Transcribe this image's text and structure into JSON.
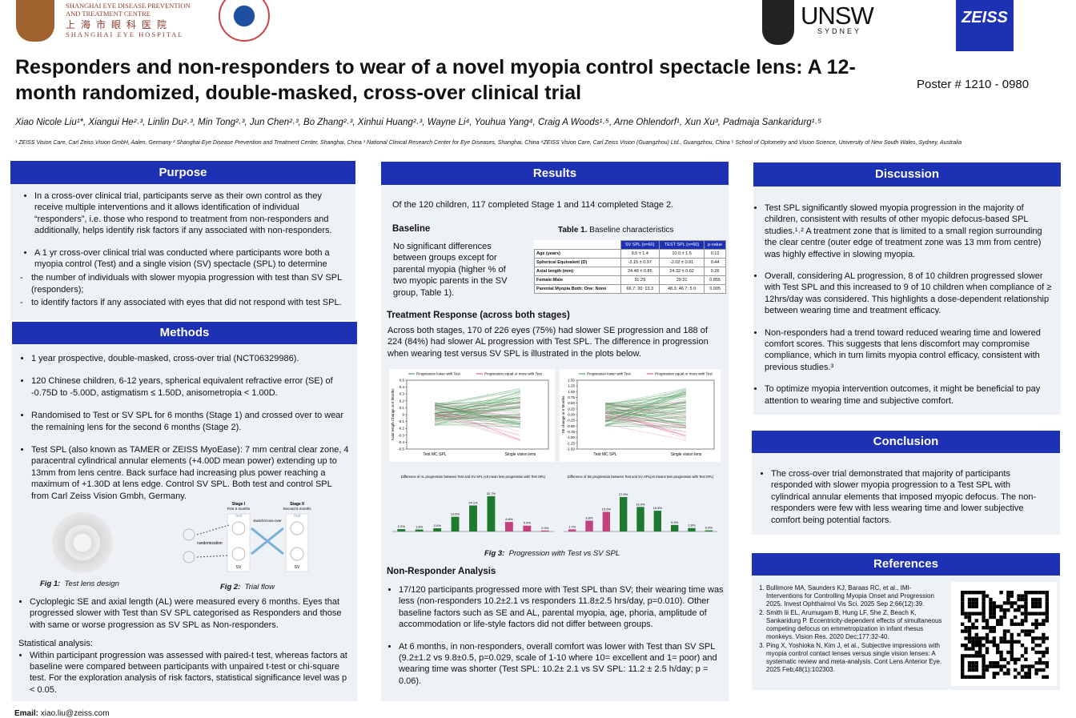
{
  "header": {
    "logo1_lines": [
      "SHANGHAI EYE DISEASE PREVENTION",
      "AND TREATMENT CENTRE"
    ],
    "logo1_cn": "上 海 市 眼 科 医 院",
    "logo1_en": "SHANGHAI EYE HOSPITAL",
    "unsw": "UNSW",
    "sydney": "SYDNEY",
    "zeiss": "ZEISS",
    "title": "Responders and non-responders to wear of a novel myopia control spectacle lens: A 12-month randomized, double-masked, cross-over clinical trial",
    "poster_no": "Poster # 1210 - 0980",
    "authors": "Xiao Nicole Liu¹*, Xiangui He²˒³, Linlin Du²˒³, Min Tong²˒³, Jun Chen²˒³, Bo Zhang²˒³, Xinhui Huang²˒³, Wayne Li⁴, Youhua Yang⁴, Craig A Woods¹˒⁵, Arne Ohlendorf¹, Xun Xu³, Padmaja Sankaridurg¹˒⁵",
    "affiliations": "¹ ZEISS Vision Care, Carl Zeiss Vision GmbH, Aalen, Germany  ² Shanghai Eye Disease Prevention and Treatment Center, Shanghai, China  ³ National Clinical Research Center for Eye Diseases, Shanghai, China  ⁴ZEISS Vision Care, Carl Zeiss Vision (Guangzhou) Ltd., Guangzhou, China  ⁵ School of Optometry and Vision Science, University of New South Wales, Sydney, Australia"
  },
  "purpose": {
    "heading": "Purpose",
    "bullets": [
      "In a cross-over clinical trial, participants serve as their own control as they receive multiple interventions and it allows identification of individual “responders”, i.e. those who respond to treatment from non-responders and additionally, helps identify risk factors if any associated with non-responders.",
      "A 1 yr cross-over clinical trial was conducted where participants wore both a myopia control (Test) and  a single vision (SV) spectacle (SPL) to determine"
    ],
    "sub_bullets": [
      "the number of individuals with slower myopia progression with test than SV SPL (responders);",
      "to identify factors if any associated with eyes that did not respond with test SPL."
    ]
  },
  "methods": {
    "heading": "Methods",
    "bullets": [
      "1 year prospective, double-masked, cross-over trial (NCT06329986).",
      "120 Chinese children, 6-12 years,  spherical equivalent refractive error (SE) of -0.75D to -5.00D, astigmatism ≤ 1.50D, anisometropia < 1.00D.",
      "Randomised to Test or SV SPL for 6 months (Stage 1) and crossed over to wear the remaining lens for the second 6 months (Stage 2).",
      "Test SPL (also known as TAMER or ZEISS MyoEase): 7 mm central clear zone, 4 paracentral cylindrical annular elements (+4.00D mean power) extending up to 13mm from lens centre. Back surface had increasing plus power reaching a maximum of +1.30D at lens edge. Control SV SPL. Both test and control SPL from Carl Zeiss Vision Gmbh, Germany."
    ],
    "fig1_label": "Fig 1:",
    "fig1_caption": "Test lens design",
    "fig2_label": "Fig 2:",
    "fig2_caption": "Trial flow",
    "fig2_texts": {
      "stage1": "Stage I",
      "stage1_sub": "First 6 months",
      "stage2": "Stage II",
      "stage2_sub": "Second 6 months",
      "test": "Test",
      "sv": "SV",
      "switch": "Switch/cross-over",
      "rand": "randomization"
    },
    "bullet_after": "Cycloplegic SE and axial length (AL) were measured every 6 months. Eyes that progressed slower with Test than SV SPL categorised as Responders and those with same or worse progression as SV SPL as Non-responders.",
    "stats_heading": "Statistical  analysis:",
    "stats_bullet": "Within participant progression was assessed with paired-t test, whereas factors at baseline were compared between participants with unpaired t-test or chi-square test. For the exploration analysis of risk factors, statistical significance level was p < 0.05."
  },
  "results": {
    "heading": "Results",
    "intro": "Of the 120 children, 117 completed Stage 1 and 114 completed Stage 2.",
    "baseline_heading": "Baseline",
    "baseline_text": "No significant differences between groups except for parental myopia (higher % of two myopic parents in the SV group, Table 1).",
    "table_label": "Table 1.",
    "table_caption": "Baseline characteristics",
    "table": {
      "header": [
        "SV SPL (n=60)",
        "TEST SPL (n=60)",
        "p-value"
      ],
      "rows": [
        [
          "Age (years)",
          "9.5 ± 1.4",
          "10.0 ± 1.5",
          "0.12"
        ],
        [
          "Spherical Equivalent (D)",
          "-2.15 ± 0.97",
          "-2.02 ± 0.91",
          "0.44"
        ],
        [
          "Axial length (mm)",
          "24.48 ± 0.85",
          "24.32 ± 0.62",
          "0.26"
        ],
        [
          "Female:Male",
          "31:29",
          "29:31",
          "0.855"
        ],
        [
          "Parental Myopia Both: One: None",
          "66.7: 20: 13.3",
          "48.3: 46.7: 5.0",
          "0.005"
        ]
      ]
    },
    "treatment_heading": "Treatment Response (across both stages)",
    "treatment_text": "Across both stages, 170 of 226 eyes (75%) had slower SE progression and 188 of 224 (84%) had slower AL progression with Test SPL. The difference in progression when wearing test versus SV SPL is illustrated in the plots below.",
    "plots": [
      {
        "legend": [
          "Progression lower with Test",
          "Progression equal or more with Test"
        ],
        "ylabel": "Axial length Change at 6 Months",
        "xlabels": [
          "Test MC SPL",
          "Single vision lens"
        ],
        "ylim": [
          -0.5,
          0.5
        ],
        "yticks": [
          {
            "value": 0.5,
            "label": "0.5"
          },
          {
            "value": 0.4,
            "label": "0.4"
          },
          {
            "value": 0.3,
            "label": "0.3"
          },
          {
            "value": 0.2,
            "label": "0.2"
          },
          {
            "value": 0.1,
            "label": "0.1"
          },
          0,
          {
            "value": -0.1,
            "label": "-0.1"
          },
          {
            "value": -0.2,
            "label": "-0.2"
          },
          {
            "value": -0.3,
            "label": "-0.3"
          },
          {
            "value": -0.4,
            "label": "-0.4"
          },
          {
            "value": -0.5,
            "label": "-0.5"
          }
        ]
      },
      {
        "legend": [
          "Progression lower with Test",
          "Progression equal or more with Test"
        ],
        "ylabel": "SE change at 6 Months",
        "xlabels": [
          "Test MC SPL",
          "Single vision lens"
        ],
        "ylim": [
          -1.5,
          1.5
        ],
        "yticks": [
          {
            "value": 1.5,
            "label": "1.50"
          },
          {
            "value": 1.25,
            "label": "1.25"
          },
          {
            "value": 1,
            "label": "1.00"
          },
          {
            "value": 0.75,
            "label": "0.75"
          },
          {
            "value": 0.5,
            "label": "0.50"
          },
          {
            "value": 0.25,
            "label": "0.25"
          },
          {
            "value": 0,
            "label": "0.00"
          },
          {
            "value": -0.25,
            "label": "-0.25"
          },
          {
            "value": -0.5,
            "label": "-0.50"
          },
          {
            "value": -0.75,
            "label": "-0.75"
          },
          {
            "value": -1,
            "label": "-1.00"
          },
          {
            "value": -1.25,
            "label": "-1.25"
          },
          {
            "value": -1.5,
            "label": "-1.50"
          }
        ]
      }
    ],
    "bars": [
      {
        "type": "bar",
        "title": "Difference of AL progression between Test and SV SPL (≤0 mean less progression with Test SPL)",
        "values": [
          2.2,
          1.8,
          3.0,
          13.6,
          24.1,
          32.7,
          8.8,
          5.4,
          0.9
        ],
        "value_labels": [
          "2.2%",
          "1.8%",
          "3.0%",
          "13.6%",
          "24.1%",
          "32.7%",
          "8.8%",
          "5.4%",
          "0.9%"
        ],
        "colors": [
          "#1e7a2e",
          "#1e7a2e",
          "#1e7a2e",
          "#1e7a2e",
          "#1e7a2e",
          "#1e7a2e",
          "#c2417f",
          "#c2417f",
          "#c2417f"
        ],
        "ylim": [
          0,
          40
        ]
      },
      {
        "type": "bar",
        "title": "Difference of SE progression between Test and SV SPL(≥0 means less progression with Test SPL)",
        "values": [
          1.7,
          8.8,
          15.9,
          27.9,
          19.9,
          16.8,
          5.3,
          2.8,
          0.9
        ],
        "value_labels": [
          "1.7%",
          "8.8%",
          "15.9%",
          "27.9%",
          "19.9%",
          "16.8%",
          "5.3%",
          "2.8%",
          "0.9%"
        ],
        "colors": [
          "#c2417f",
          "#c2417f",
          "#c2417f",
          "#1e7a2e",
          "#1e7a2e",
          "#1e7a2e",
          "#1e7a2e",
          "#1e7a2e",
          "#1e7a2e"
        ],
        "ylim": [
          0,
          35
        ]
      }
    ],
    "fig3_label": "Fig 3:",
    "fig3_caption": "Progression with Test vs SV SPL",
    "nonresp_heading": "Non-Responder Analysis",
    "nonresp_bullets": [
      "17/120 participants progressed more with Test SPL than SV; their wearing time was less (non-responders 10.2±2.1 vs  responders 11.8±2.5 hrs/day, p=0.010). Other baseline factors such as SE and AL, parental myopia, age, phoria, amplitude of accommodation or life-style factors did not differ between groups.",
      "At 6 months, in non-responders, overall comfort was lower with Test than SV SPL (9.2±1.2 vs 9.8±0.5, p=0.029, scale of 1-10 where 10= excellent and 1= poor) and wearing time was shorter (Test SPL: 10.2± 2.1 vs SV SPL: 11.2 ± 2.5 h/day; p = 0.06)."
    ]
  },
  "discussion": {
    "heading": "Discussion",
    "bullets": [
      "Test SPL significantly slowed myopia progression in the majority of children, consistent with results of other myopic defocus-based SPL studies.¹˒²  A treatment zone that is limited to a small region surrounding the clear centre (outer edge of treatment zone was 13 mm from centre) was highly effective in slowing myopia.",
      "Overall, considering AL progression,  8 of 10 children progressed slower with Test SPL and this increased to 9 of 10 children when compliance of ≥ 12hrs/day was considered. This highlights a dose-dependent relationship between wearing time and treatment efficacy.",
      "Non-responders had a trend toward reduced wearing time and lowered comfort scores. This suggests that lens discomfort may compromise compliance, which in turn limits myopia control efficacy, consistent with previous studies.³",
      "To optimize myopia intervention outcomes, it might be beneficial to pay attention to wearing time and subjective comfort."
    ]
  },
  "conclusion": {
    "heading": "Conclusion",
    "bullets": [
      "The cross-over trial demonstrated that majority of participants responded with slower myopia progression to a Test SPL with cylindrical annular elements that imposed myopic defocus. The non-responders were few with less wearing time and lower subjective comfort being potential factors."
    ]
  },
  "references": {
    "heading": "References",
    "items": [
      "Bullimore MA, Saunders KJ, Baraas RC, et al.,  IMI-Interventions for Controlling Myopia Onset and Progression 2025. Invest Ophthalmol Vis Sci. 2025 Sep 2;66(12):39.",
      "Smith lii EL, Arumugam B, Hung LF, She Z, Beach K, Sankaridurg P. Eccentricity-dependent effects of simultaneous competing defocus on emmetropization in infant rhesus monkeys. Vision Res. 2020 Dec;177:32-40.",
      "Ping X, Yoshioka N, Kim J, et al., Subjective impressions with myopia control contact lenses versus single vision lenses: A systematic review and meta-analysis. Cont Lens Anterior Eye. 2025 Feb;48(1):102303."
    ]
  },
  "footer": {
    "email_label": "Email:",
    "email": "xiao.liu@zeiss.com"
  }
}
